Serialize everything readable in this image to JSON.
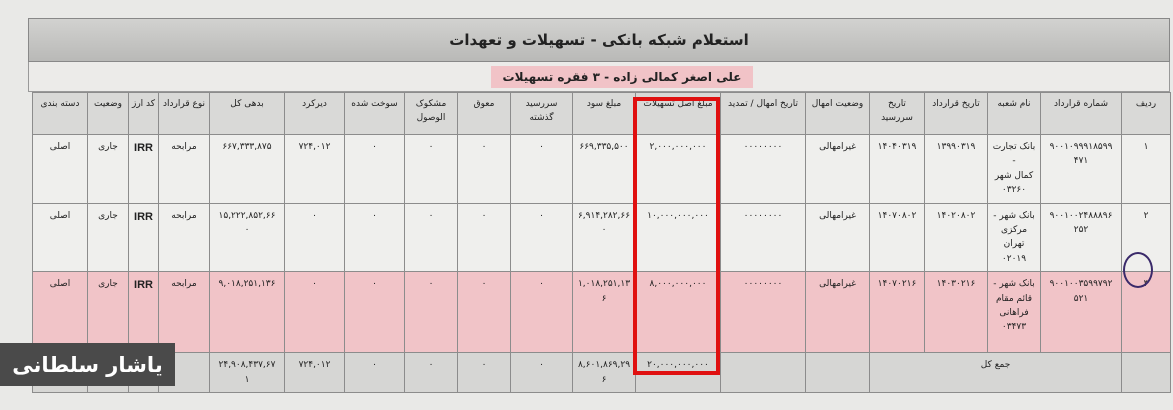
{
  "title": "استعلام شبکه بانکی - تسهیلات و تعهدات",
  "subtitle": "علی اصغر کمالی زاده - ۳ فقره تسهیلات",
  "watermark": "یاشار سلطانی",
  "colors": {
    "highlight_row": "#f1c4c8",
    "highlight_box": "#e01010"
  },
  "headers": [
    "ردیف",
    "شماره قرارداد",
    "نام شعبه",
    "تاریخ قرارداد",
    "تاریخ سررسید",
    "وضعیت امهال",
    "تاریخ امهال / تمدید",
    "مبلغ اصل تسهیلات",
    "مبلغ سود",
    "سررسید\nگذشته",
    "معوق",
    "مشکوک\nالوصول",
    "سوخت شده",
    "دیرکرد",
    "بدهی کل",
    "نوع قرارداد",
    "کد ارز",
    "وضعیت",
    "دسته بندی"
  ],
  "rows": [
    [
      "۱",
      "۹۰۰۱۰۹۹۹۱۸۵۹۹\n۴۷۱",
      "بانک تجارت -\nکمال شهر\n۰۳۲۶۰",
      "۱۳۹۹۰۳۱۹",
      "۱۴۰۴۰۳۱۹",
      "غیرامهالی",
      "۰۰۰۰۰۰۰۰",
      "۲,۰۰۰,۰۰۰,۰۰۰",
      "۶۶۹,۳۳۵,۵۰۰",
      "۰",
      "۰",
      "۰",
      "۰",
      "۷۲۴,۰۱۲",
      "۶۶۷,۳۳۳,۸۷۵",
      "مرابحه",
      "IRR",
      "جاری",
      "اصلی"
    ],
    [
      "۲",
      "۹۰۰۱۰۰۲۴۸۸۸۹۶\n۲۵۲",
      "بانک شهر -\nمرکزی تهران\n۰۲۰۱۹",
      "۱۴۰۲۰۸۰۲",
      "۱۴۰۷۰۸۰۲",
      "غیرامهالی",
      "۰۰۰۰۰۰۰۰",
      "۱۰,۰۰۰,۰۰۰,۰۰۰",
      "۶,۹۱۴,۲۸۲,۶۶\n۰",
      "۰",
      "۰",
      "۰",
      "۰",
      "۰",
      "۱۵,۲۲۲,۸۵۲,۶۶\n۰",
      "مرابحه",
      "IRR",
      "جاری",
      "اصلی"
    ],
    [
      "۳",
      "۹۰۰۱۰۰۳۵۹۹۷۹۲\n۵۲۱",
      "بانک شهر -\nقائم مقام\nفراهانی\n۰۳۴۷۳",
      "۱۴۰۳۰۲۱۶",
      "۱۴۰۷۰۲۱۶",
      "غیرامهالی",
      "۰۰۰۰۰۰۰۰",
      "۸,۰۰۰,۰۰۰,۰۰۰",
      "۱,۰۱۸,۲۵۱,۱۳\n۶",
      "۰",
      "۰",
      "۰",
      "۰",
      "۰",
      "۹,۰۱۸,۲۵۱,۱۳۶",
      "مرابحه",
      "IRR",
      "جاری",
      "اصلی"
    ]
  ],
  "total": {
    "label": "جمع کل",
    "principal": "۲۰,۰۰۰,۰۰۰,۰۰۰",
    "profit": "۸,۶۰۱,۸۶۹,۲۹\n۶",
    "overdue": "۰",
    "deferred": "۰",
    "doubtful": "۰",
    "written_off": "۰",
    "late_fee": "۷۲۴,۰۱۲",
    "total_debt": "۲۴,۹۰۸,۴۳۷,۶۷\n۱"
  }
}
